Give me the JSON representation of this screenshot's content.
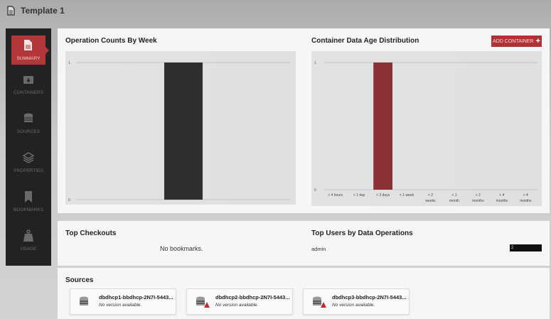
{
  "header": {
    "title": "Template 1"
  },
  "sidebar": {
    "items": [
      {
        "label": "SUMMARY",
        "icon": "document-icon",
        "active": true
      },
      {
        "label": "CONTAINERS",
        "icon": "container-icon"
      },
      {
        "label": "SOURCES",
        "icon": "database-icon"
      },
      {
        "label": "PROPERTIES",
        "icon": "layers-icon"
      },
      {
        "label": "BOOKMARKS",
        "icon": "bookmark-icon"
      },
      {
        "label": "USAGE",
        "icon": "weight-icon"
      }
    ]
  },
  "add_container_label": "ADD CONTAINER",
  "chart_data": [
    {
      "type": "bar",
      "title": "Operation Counts By Week",
      "categories": [
        ""
      ],
      "values": [
        1
      ],
      "ylim": [
        0,
        1
      ],
      "yticks": [
        "0",
        "1"
      ],
      "color": "#2e2e30"
    },
    {
      "type": "bar",
      "title": "Container Data Age Distribution",
      "categories": [
        "< 4 hours",
        "< 1 day",
        "< 3 days",
        "< 1 week",
        "< 2 weeks",
        "< 1 month",
        "< 2 months",
        "< 4 months",
        "> 4 months"
      ],
      "values": [
        0,
        0,
        1,
        0,
        0,
        0,
        0,
        0,
        0
      ],
      "ylim": [
        0,
        1
      ],
      "yticks": [
        "0",
        "1"
      ],
      "color": "#8b3034"
    }
  ],
  "top_checkouts": {
    "title": "Top Checkouts",
    "empty": "No bookmarks."
  },
  "top_users": {
    "title": "Top Users by Data Operations",
    "rows": [
      {
        "user": "admin",
        "count": "2"
      }
    ]
  },
  "sources": {
    "title": "Sources",
    "items": [
      {
        "name": "dbdhcp1-bbdhcp-2N7I-5443...",
        "version": "No version available.",
        "warning": false
      },
      {
        "name": "dbdhcp2-bbdhcp-2N7I-5443...",
        "version": "No version available.",
        "warning": true
      },
      {
        "name": "dbdhcp3-bbdhcp-2N7I-5443...",
        "version": "No version available.",
        "warning": true
      }
    ]
  }
}
